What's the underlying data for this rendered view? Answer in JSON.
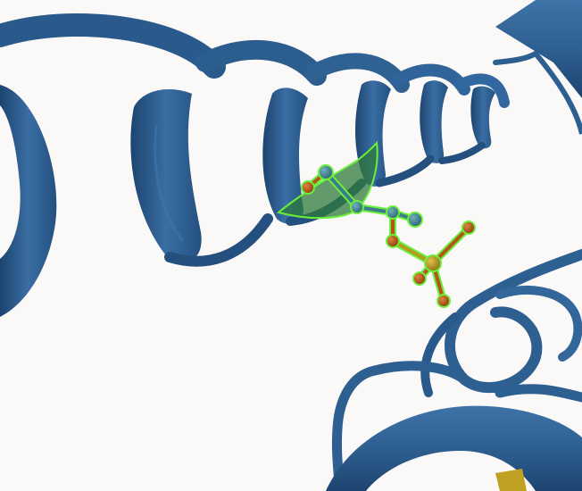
{
  "scene": {
    "background_color": "#fbf9f8",
    "ribbon_color": "#2e5f91",
    "ribbon_dark_color": "#1d4470",
    "ribbon_light_color": "#3e73a8",
    "highlight_outline_color": "#69f03a",
    "highlight_fill_color": "#2f7a3c",
    "atom_carbon_color": "#3d7c8e",
    "atom_oxygen_color": "#b5541a",
    "atom_phosphorus_color": "#b59a1f",
    "strand_color": "#c0a020"
  }
}
